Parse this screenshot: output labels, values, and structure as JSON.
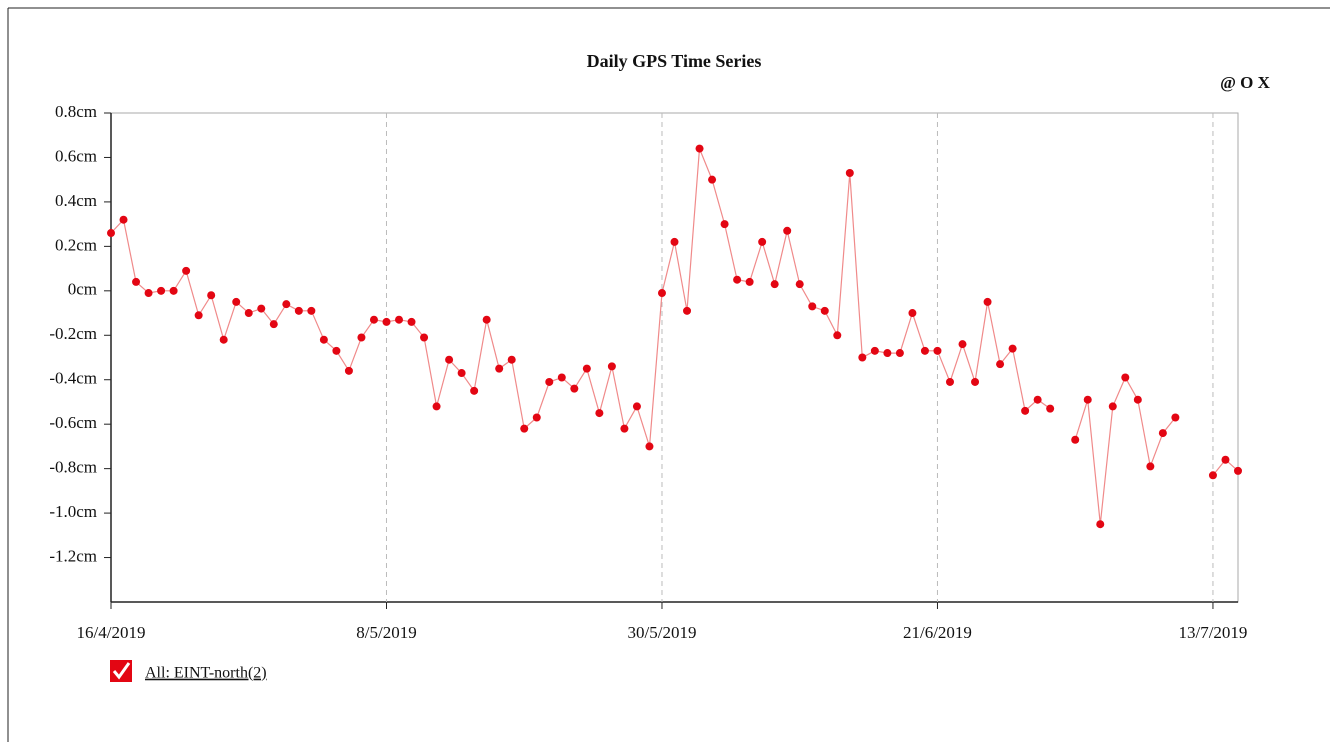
{
  "toolbar": "@ O X",
  "chart_data": {
    "type": "line",
    "title": "Daily GPS Time Series",
    "x": [
      "16/4/2019",
      "17/4/2019",
      "18/4/2019",
      "19/4/2019",
      "20/4/2019",
      "21/4/2019",
      "22/4/2019",
      "23/4/2019",
      "24/4/2019",
      "25/4/2019",
      "26/4/2019",
      "27/4/2019",
      "28/4/2019",
      "29/4/2019",
      "30/4/2019",
      "1/5/2019",
      "2/5/2019",
      "3/5/2019",
      "4/5/2019",
      "5/5/2019",
      "6/5/2019",
      "7/5/2019",
      "8/5/2019",
      "9/5/2019",
      "10/5/2019",
      "11/5/2019",
      "12/5/2019",
      "13/5/2019",
      "14/5/2019",
      "15/5/2019",
      "16/5/2019",
      "17/5/2019",
      "18/5/2019",
      "19/5/2019",
      "20/5/2019",
      "21/5/2019",
      "22/5/2019",
      "23/5/2019",
      "24/5/2019",
      "25/5/2019",
      "26/5/2019",
      "27/5/2019",
      "28/5/2019",
      "29/5/2019",
      "30/5/2019",
      "31/5/2019",
      "1/6/2019",
      "2/6/2019",
      "3/6/2019",
      "4/6/2019",
      "5/6/2019",
      "6/6/2019",
      "7/6/2019",
      "8/6/2019",
      "9/6/2019",
      "10/6/2019",
      "11/6/2019",
      "12/6/2019",
      "13/6/2019",
      "14/6/2019",
      "15/6/2019",
      "16/6/2019",
      "17/6/2019",
      "18/6/2019",
      "19/6/2019",
      "20/6/2019",
      "21/6/2019",
      "22/6/2019",
      "23/6/2019",
      "24/6/2019",
      "25/6/2019",
      "26/6/2019",
      "27/6/2019",
      "28/6/2019",
      "29/6/2019",
      "30/6/2019",
      "1/7/2019",
      "2/7/2019",
      "3/7/2019",
      "4/7/2019",
      "5/7/2019",
      "6/7/2019",
      "7/7/2019",
      "8/7/2019",
      "9/7/2019",
      "10/7/2019",
      "11/7/2019",
      "12/7/2019",
      "13/7/2019",
      "14/7/2019",
      "15/7/2019"
    ],
    "series": [
      {
        "name": "All: EINT-north(2)",
        "color": "#e30613",
        "line_color": "#f08a8a",
        "values": [
          0.26,
          0.32,
          0.04,
          -0.01,
          0.0,
          0.0,
          0.09,
          -0.11,
          -0.02,
          -0.22,
          -0.05,
          -0.1,
          -0.08,
          -0.15,
          -0.06,
          -0.09,
          -0.09,
          -0.22,
          -0.27,
          -0.36,
          -0.21,
          -0.13,
          -0.14,
          -0.13,
          -0.14,
          -0.21,
          -0.52,
          -0.31,
          -0.37,
          -0.45,
          -0.13,
          -0.35,
          -0.31,
          -0.62,
          -0.57,
          -0.41,
          -0.39,
          -0.44,
          -0.35,
          -0.55,
          -0.34,
          -0.62,
          -0.52,
          -0.7,
          -0.01,
          0.22,
          -0.09,
          0.64,
          0.5,
          0.3,
          0.05,
          0.04,
          0.22,
          0.03,
          0.27,
          0.03,
          -0.07,
          -0.09,
          -0.2,
          0.53,
          -0.3,
          -0.27,
          -0.28,
          -0.28,
          -0.1,
          -0.27,
          -0.27,
          -0.41,
          -0.24,
          -0.41,
          -0.05,
          -0.33,
          -0.26,
          -0.54,
          -0.49,
          -0.53,
          null,
          -0.67,
          -0.49,
          -1.05,
          -0.52,
          -0.39,
          -0.49,
          -0.79,
          -0.64,
          -0.57,
          null,
          null,
          -0.83,
          -0.76,
          -0.81
        ]
      }
    ],
    "xlim": [
      "16/4/2019",
      "15/7/2019"
    ],
    "xticks": [
      "16/4/2019",
      "8/5/2019",
      "30/5/2019",
      "21/6/2019",
      "13/7/2019"
    ],
    "ylim": [
      -1.4,
      0.8
    ],
    "yticks": [
      {
        "value": 0.8,
        "label": "0.8cm"
      },
      {
        "value": 0.6,
        "label": "0.6cm"
      },
      {
        "value": 0.4,
        "label": "0.4cm"
      },
      {
        "value": 0.2,
        "label": "0.2cm"
      },
      {
        "value": 0,
        "label": "0cm"
      },
      {
        "value": -0.2,
        "label": "-0.2cm"
      },
      {
        "value": -0.4,
        "label": "-0.4cm"
      },
      {
        "value": -0.6,
        "label": "-0.6cm"
      },
      {
        "value": -0.8,
        "label": "-0.8cm"
      },
      {
        "value": -1.0,
        "label": "-1.0cm"
      },
      {
        "value": -1.2,
        "label": "-1.2cm"
      }
    ],
    "grid": "x"
  }
}
